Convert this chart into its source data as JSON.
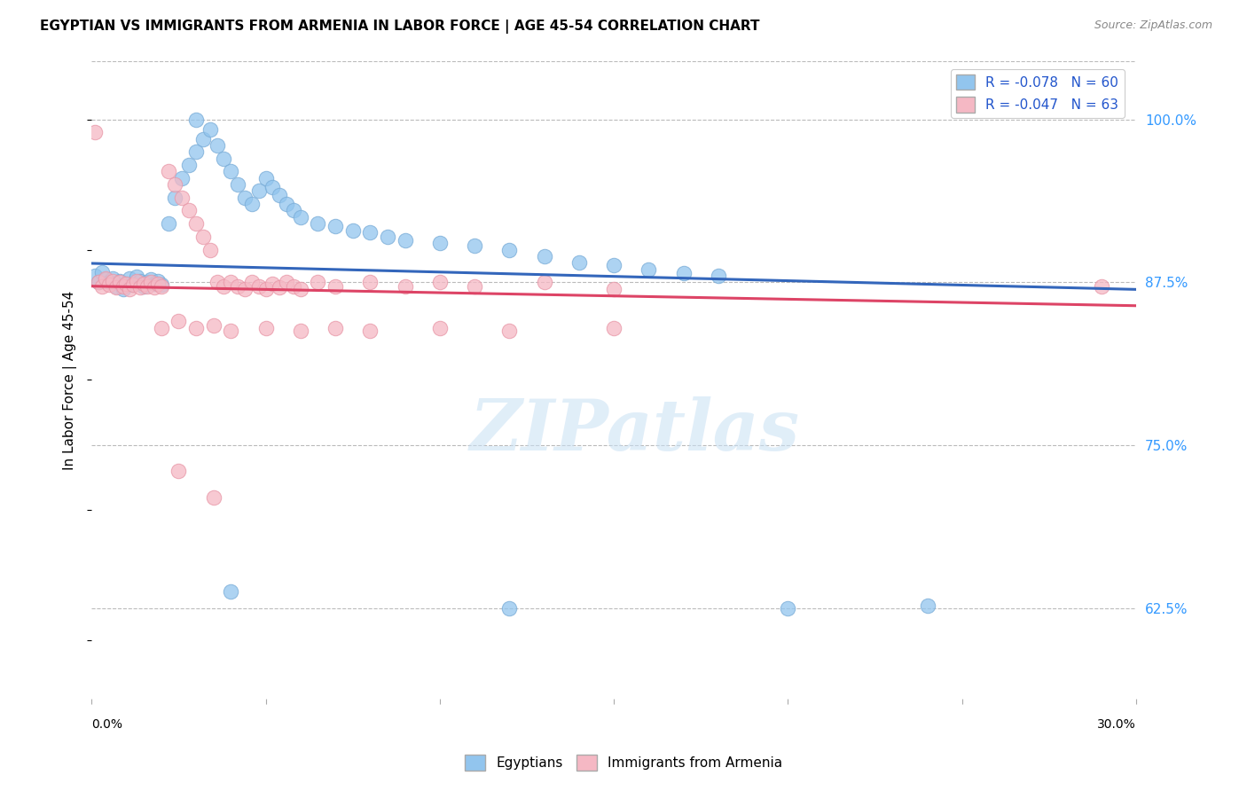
{
  "title": "EGYPTIAN VS IMMIGRANTS FROM ARMENIA IN LABOR FORCE | AGE 45-54 CORRELATION CHART",
  "source": "Source: ZipAtlas.com",
  "ylabel": "In Labor Force | Age 45-54",
  "ytick_labels": [
    "62.5%",
    "75.0%",
    "87.5%",
    "100.0%"
  ],
  "ytick_values": [
    0.625,
    0.75,
    0.875,
    1.0
  ],
  "xlim": [
    0.0,
    0.3
  ],
  "ylim": [
    0.555,
    1.045
  ],
  "legend_r_blue": "R = -0.078",
  "legend_n_blue": "N = 60",
  "legend_r_pink": "R = -0.047",
  "legend_n_pink": "N = 63",
  "blue_color": "#92C5EE",
  "pink_color": "#F5B8C4",
  "blue_edge_color": "#7AADD8",
  "pink_edge_color": "#E898A8",
  "blue_line_color": "#3366BB",
  "pink_line_color": "#DD4466",
  "blue_scatter": [
    [
      0.001,
      0.88
    ],
    [
      0.002,
      0.875
    ],
    [
      0.003,
      0.883
    ],
    [
      0.004,
      0.877
    ],
    [
      0.005,
      0.875
    ],
    [
      0.006,
      0.878
    ],
    [
      0.007,
      0.872
    ],
    [
      0.008,
      0.876
    ],
    [
      0.009,
      0.87
    ],
    [
      0.01,
      0.874
    ],
    [
      0.011,
      0.878
    ],
    [
      0.012,
      0.873
    ],
    [
      0.013,
      0.879
    ],
    [
      0.014,
      0.876
    ],
    [
      0.015,
      0.872
    ],
    [
      0.016,
      0.875
    ],
    [
      0.017,
      0.877
    ],
    [
      0.018,
      0.874
    ],
    [
      0.019,
      0.876
    ],
    [
      0.02,
      0.873
    ],
    [
      0.022,
      0.92
    ],
    [
      0.024,
      0.94
    ],
    [
      0.026,
      0.955
    ],
    [
      0.028,
      0.965
    ],
    [
      0.03,
      0.975
    ],
    [
      0.032,
      0.985
    ],
    [
      0.034,
      0.992
    ],
    [
      0.036,
      0.98
    ],
    [
      0.038,
      0.97
    ],
    [
      0.04,
      0.96
    ],
    [
      0.042,
      0.95
    ],
    [
      0.044,
      0.94
    ],
    [
      0.046,
      0.935
    ],
    [
      0.048,
      0.945
    ],
    [
      0.05,
      0.955
    ],
    [
      0.052,
      0.948
    ],
    [
      0.054,
      0.942
    ],
    [
      0.056,
      0.935
    ],
    [
      0.058,
      0.93
    ],
    [
      0.06,
      0.925
    ],
    [
      0.03,
      1.0
    ],
    [
      0.065,
      0.92
    ],
    [
      0.07,
      0.918
    ],
    [
      0.075,
      0.915
    ],
    [
      0.08,
      0.913
    ],
    [
      0.085,
      0.91
    ],
    [
      0.09,
      0.907
    ],
    [
      0.1,
      0.905
    ],
    [
      0.11,
      0.903
    ],
    [
      0.12,
      0.9
    ],
    [
      0.13,
      0.895
    ],
    [
      0.14,
      0.89
    ],
    [
      0.15,
      0.888
    ],
    [
      0.16,
      0.885
    ],
    [
      0.17,
      0.882
    ],
    [
      0.18,
      0.88
    ],
    [
      0.04,
      0.638
    ],
    [
      0.12,
      0.625
    ],
    [
      0.2,
      0.625
    ],
    [
      0.24,
      0.627
    ]
  ],
  "pink_scatter": [
    [
      0.001,
      0.99
    ],
    [
      0.002,
      0.875
    ],
    [
      0.003,
      0.872
    ],
    [
      0.004,
      0.878
    ],
    [
      0.005,
      0.873
    ],
    [
      0.006,
      0.876
    ],
    [
      0.007,
      0.871
    ],
    [
      0.008,
      0.875
    ],
    [
      0.009,
      0.872
    ],
    [
      0.01,
      0.874
    ],
    [
      0.011,
      0.87
    ],
    [
      0.012,
      0.873
    ],
    [
      0.013,
      0.876
    ],
    [
      0.014,
      0.871
    ],
    [
      0.015,
      0.874
    ],
    [
      0.016,
      0.872
    ],
    [
      0.017,
      0.875
    ],
    [
      0.018,
      0.871
    ],
    [
      0.019,
      0.874
    ],
    [
      0.02,
      0.872
    ],
    [
      0.022,
      0.96
    ],
    [
      0.024,
      0.95
    ],
    [
      0.026,
      0.94
    ],
    [
      0.028,
      0.93
    ],
    [
      0.03,
      0.92
    ],
    [
      0.032,
      0.91
    ],
    [
      0.034,
      0.9
    ],
    [
      0.036,
      0.875
    ],
    [
      0.038,
      0.872
    ],
    [
      0.04,
      0.875
    ],
    [
      0.042,
      0.872
    ],
    [
      0.044,
      0.87
    ],
    [
      0.046,
      0.875
    ],
    [
      0.048,
      0.872
    ],
    [
      0.05,
      0.87
    ],
    [
      0.052,
      0.874
    ],
    [
      0.054,
      0.871
    ],
    [
      0.056,
      0.875
    ],
    [
      0.058,
      0.872
    ],
    [
      0.06,
      0.87
    ],
    [
      0.065,
      0.875
    ],
    [
      0.07,
      0.872
    ],
    [
      0.08,
      0.875
    ],
    [
      0.09,
      0.872
    ],
    [
      0.1,
      0.875
    ],
    [
      0.11,
      0.872
    ],
    [
      0.13,
      0.875
    ],
    [
      0.15,
      0.87
    ],
    [
      0.02,
      0.84
    ],
    [
      0.025,
      0.845
    ],
    [
      0.03,
      0.84
    ],
    [
      0.035,
      0.842
    ],
    [
      0.04,
      0.838
    ],
    [
      0.05,
      0.84
    ],
    [
      0.06,
      0.838
    ],
    [
      0.07,
      0.84
    ],
    [
      0.08,
      0.838
    ],
    [
      0.1,
      0.84
    ],
    [
      0.12,
      0.838
    ],
    [
      0.15,
      0.84
    ],
    [
      0.025,
      0.73
    ],
    [
      0.035,
      0.71
    ],
    [
      0.29,
      0.872
    ]
  ],
  "blue_trendline": [
    [
      0.0,
      0.8895
    ],
    [
      0.3,
      0.8695
    ]
  ],
  "pink_trendline": [
    [
      0.0,
      0.872
    ],
    [
      0.3,
      0.857
    ]
  ]
}
